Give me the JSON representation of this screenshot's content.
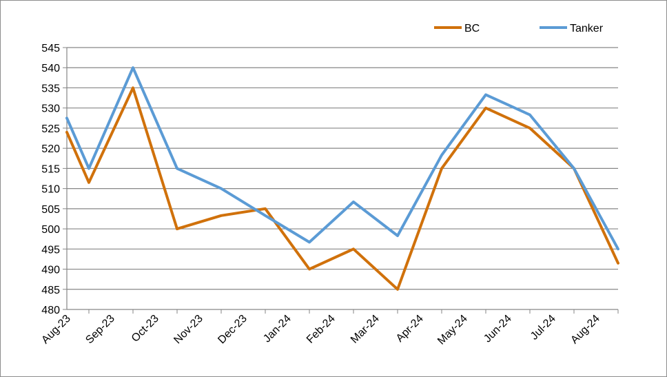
{
  "chart_data": {
    "type": "line",
    "title": "",
    "xlabel": "",
    "ylabel": "",
    "categories": [
      "Aug-23",
      "Sep-23",
      "Oct-23",
      "Nov-23",
      "Dec-23",
      "Jan-24",
      "Feb-24",
      "Mar-24",
      "Apr-24",
      "May-24",
      "Jun-24",
      "Jul-24",
      "Aug-24"
    ],
    "ylim": [
      480,
      545
    ],
    "ytick_step": 5,
    "grid": "horizontal",
    "legend_position": "top-right",
    "series": [
      {
        "name": "BC",
        "color": "#D0710B",
        "x": [
          0,
          0.5,
          1.5,
          2.5,
          3.5,
          4.5,
          5.5,
          6.5,
          7.5,
          8.5,
          9.5,
          10.5,
          11.5,
          12.5
        ],
        "values": [
          524,
          511.5,
          535,
          500,
          503.3,
          505,
          490,
          495,
          485,
          515,
          530,
          525,
          515,
          491.5
        ]
      },
      {
        "name": "Tanker",
        "color": "#5B9BD5",
        "x": [
          0,
          0.5,
          1.5,
          2.5,
          3.5,
          4.5,
          5.5,
          6.5,
          7.5,
          8.5,
          9.5,
          10.5,
          11.5,
          12.5
        ],
        "values": [
          527.5,
          515,
          540,
          515,
          510,
          503.3,
          496.7,
          506.7,
          498.3,
          518.3,
          533.3,
          528.3,
          515,
          495
        ]
      }
    ]
  }
}
